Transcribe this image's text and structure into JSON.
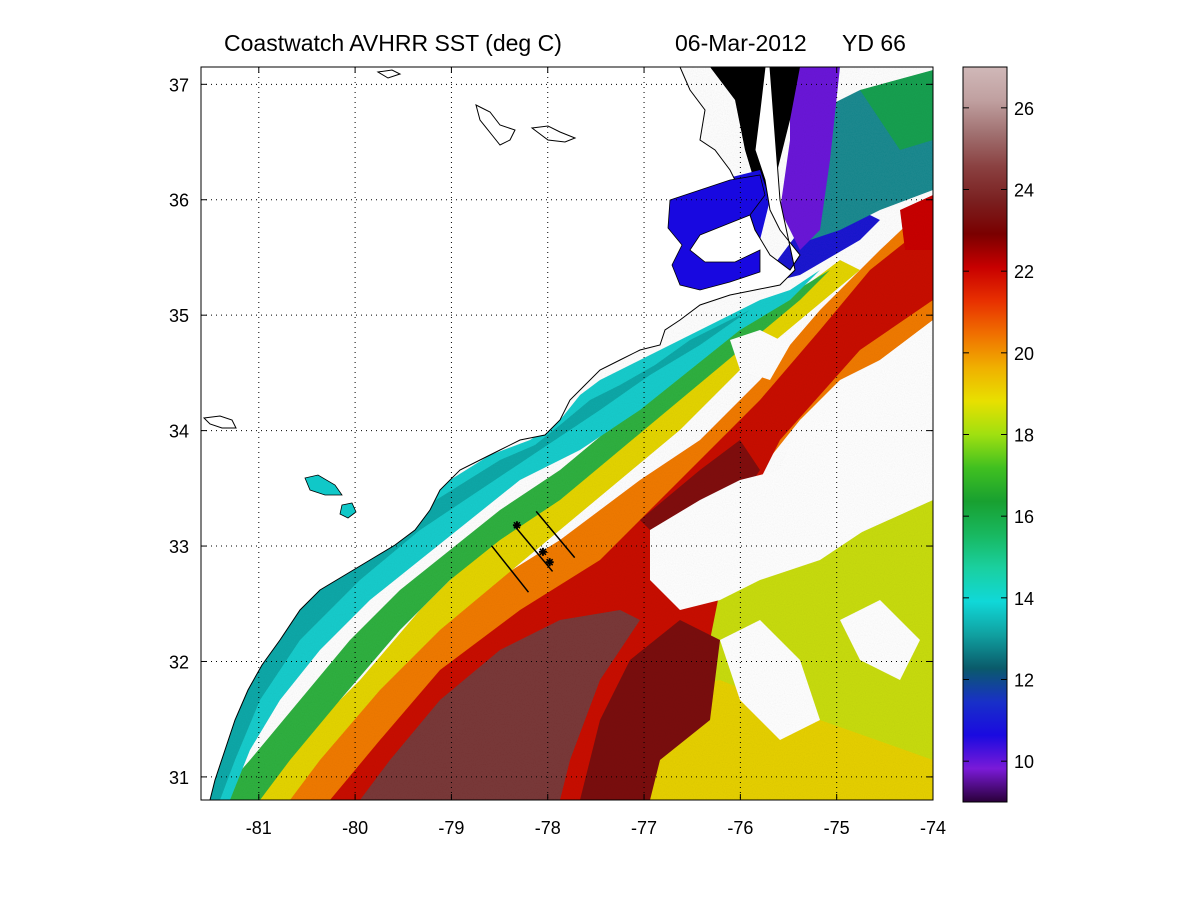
{
  "title": {
    "left": "Coastwatch   AVHRR   SST  (deg C)",
    "date": "06-Mar-2012",
    "yearday": "YD 66"
  },
  "map": {
    "lon_range": [
      -81.6,
      -74.0
    ],
    "lat_range": [
      30.8,
      37.15
    ],
    "lon_ticks": [
      -81,
      -80,
      -79,
      -78,
      -77,
      -76,
      -75,
      -74
    ],
    "lat_ticks": [
      31,
      32,
      33,
      34,
      35,
      36,
      37
    ],
    "grid": "dotted",
    "cloud_mask_color": "#ffffff",
    "land_color": "#ffffff"
  },
  "colorbar": {
    "range": [
      9,
      27
    ],
    "ticks": [
      10,
      12,
      14,
      16,
      18,
      20,
      22,
      24,
      26
    ],
    "colors": [
      "#2a003a",
      "#7a1ad8",
      "#1a0ae0",
      "#1830c8",
      "#0a5a6a",
      "#10a0a0",
      "#10d8d8",
      "#1ad0a0",
      "#18b860",
      "#18a030",
      "#40c020",
      "#a0e010",
      "#e8e000",
      "#f0b000",
      "#f07000",
      "#e83000",
      "#c80000",
      "#7a0000",
      "#7a2020",
      "#8a4040",
      "#a07070",
      "#c0a0a0",
      "#d0b8b8"
    ]
  },
  "glider_tracks": [
    {
      "start": [
        -78.58,
        33.0
      ],
      "end": [
        -78.2,
        32.6
      ]
    },
    {
      "start": [
        -78.35,
        33.18
      ],
      "end": [
        -77.95,
        32.78
      ]
    },
    {
      "start": [
        -78.12,
        33.3
      ],
      "end": [
        -77.72,
        32.9
      ]
    }
  ],
  "stations": [
    [
      -78.32,
      33.18
    ],
    [
      -78.05,
      32.95
    ],
    [
      -77.98,
      32.86
    ]
  ]
}
